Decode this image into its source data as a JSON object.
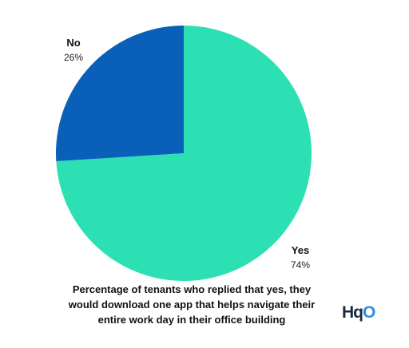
{
  "chart_data": {
    "type": "pie",
    "slices": [
      {
        "label": "No",
        "percent_label": "26%",
        "value": 26,
        "color": "#0a60b8"
      },
      {
        "label": "Yes",
        "percent_label": "74%",
        "value": 74,
        "color": "#2de0b4"
      }
    ],
    "start_angle_deg": -90,
    "caption_lines": [
      "Percentage of tenants who replied that yes, they",
      "would download one app that helps navigate their",
      "entire work day in their office building"
    ]
  },
  "logo": {
    "text_main": "Hq",
    "text_accent": "O"
  }
}
